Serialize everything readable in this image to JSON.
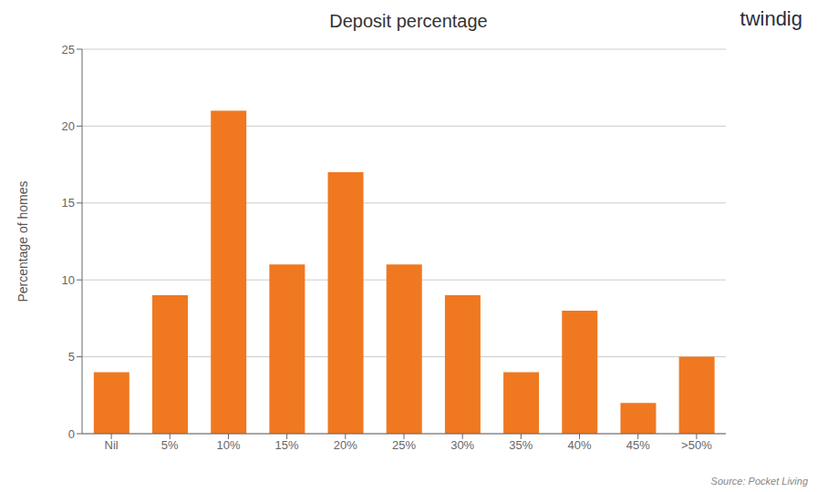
{
  "chart_data": {
    "type": "bar",
    "title": "Deposit percentage",
    "ylabel": "Percentage of homes",
    "categories": [
      "Nil",
      "5%",
      "10%",
      "15%",
      "20%",
      "25%",
      "30%",
      "35%",
      "40%",
      "45%",
      ">50%"
    ],
    "values": [
      4,
      9,
      21,
      11,
      17,
      11,
      9,
      4,
      8,
      2,
      5
    ],
    "color": "#F07820",
    "ylim": [
      0,
      25
    ],
    "yticks": [
      0,
      5,
      10,
      15,
      20,
      25
    ],
    "grid": true,
    "annotations": [
      "Source: Pocket Living",
      "twindig"
    ]
  }
}
